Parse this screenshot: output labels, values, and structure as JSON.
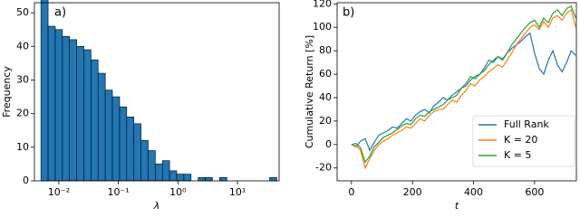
{
  "chart_data": [
    {
      "type": "histogram",
      "annotation": "a)",
      "xlabel": "λ",
      "ylabel": "Frequency",
      "xscale": "log",
      "color": "#1f77b4",
      "grid": false,
      "bins": [
        0.00501,
        0.00661,
        0.00871,
        0.0115,
        0.0151,
        0.02,
        0.0263,
        0.0347,
        0.0457,
        0.0603,
        0.0794,
        0.105,
        0.138,
        0.182,
        0.24,
        0.316,
        0.417,
        0.55,
        0.724,
        0.955,
        1.26,
        1.66,
        2.19,
        2.88,
        3.8,
        5.01,
        6.61,
        8.71,
        11.5,
        15.1,
        20.0,
        26.3,
        34.7,
        45.7
      ],
      "values": [
        54,
        46,
        45,
        43,
        42,
        40,
        39,
        36,
        32,
        27,
        25,
        22,
        19,
        17,
        12,
        9,
        5,
        6,
        3,
        2,
        2,
        0,
        1,
        1,
        0,
        1,
        0,
        0,
        0,
        0,
        0,
        0,
        1
      ],
      "xlim": [
        0.0039,
        50
      ],
      "xticks": [
        {
          "value": 0.01,
          "label": "10⁻²"
        },
        {
          "value": 0.1,
          "label": "10⁻¹"
        },
        {
          "value": 1,
          "label": "10⁰"
        },
        {
          "value": 10,
          "label": "10¹"
        }
      ],
      "ylim": [
        0,
        53
      ],
      "yticks": [
        0,
        10,
        20,
        30,
        40,
        50
      ]
    },
    {
      "type": "line",
      "annotation": "b)",
      "xlabel": "t",
      "ylabel": "Cumulative Return [%]",
      "legend": "lower right",
      "grid": false,
      "x": [
        0,
        15,
        30,
        45,
        60,
        75,
        90,
        105,
        120,
        135,
        150,
        165,
        180,
        195,
        210,
        225,
        240,
        255,
        270,
        285,
        300,
        315,
        330,
        345,
        360,
        375,
        390,
        405,
        420,
        435,
        450,
        465,
        480,
        495,
        510,
        525,
        540,
        555,
        570,
        585,
        600,
        615,
        630,
        645,
        660,
        675,
        690,
        705,
        720,
        735
      ],
      "series": [
        {
          "name": "Full Rank",
          "color": "#1f77b4",
          "values": [
            0,
            -2,
            3,
            5,
            -5,
            2,
            8,
            10,
            12,
            15,
            14,
            18,
            22,
            20,
            25,
            28,
            30,
            27,
            33,
            36,
            40,
            38,
            42,
            45,
            48,
            50,
            55,
            58,
            60,
            65,
            72,
            70,
            75,
            73,
            78,
            82,
            85,
            88,
            92,
            95,
            78,
            65,
            60,
            72,
            80,
            68,
            62,
            70,
            80,
            76
          ]
        },
        {
          "name": "K = 20",
          "color": "#ff7f0e",
          "values": [
            0,
            -1,
            -5,
            -20,
            -12,
            -5,
            0,
            3,
            5,
            8,
            10,
            12,
            15,
            14,
            18,
            22,
            20,
            25,
            28,
            30,
            30,
            34,
            38,
            36,
            42,
            46,
            52,
            50,
            55,
            58,
            62,
            65,
            68,
            66,
            72,
            78,
            85,
            90,
            95,
            100,
            102,
            98,
            105,
            100,
            108,
            110,
            106,
            112,
            115,
            100
          ]
        },
        {
          "name": "K = 5",
          "color": "#2ca02c",
          "values": [
            0,
            1,
            -3,
            -15,
            -10,
            -2,
            2,
            6,
            8,
            10,
            13,
            16,
            18,
            17,
            22,
            25,
            24,
            28,
            30,
            32,
            34,
            38,
            40,
            42,
            48,
            52,
            58,
            56,
            60,
            63,
            68,
            72,
            75,
            72,
            78,
            85,
            90,
            95,
            100,
            104,
            106,
            100,
            108,
            104,
            112,
            115,
            110,
            116,
            118,
            108
          ]
        }
      ],
      "xlim": [
        -47,
        737
      ],
      "xticks": [
        0,
        200,
        400,
        600
      ],
      "ylim": [
        -31,
        121
      ],
      "yticks": [
        -20,
        0,
        20,
        40,
        60,
        80,
        100,
        120
      ]
    }
  ]
}
